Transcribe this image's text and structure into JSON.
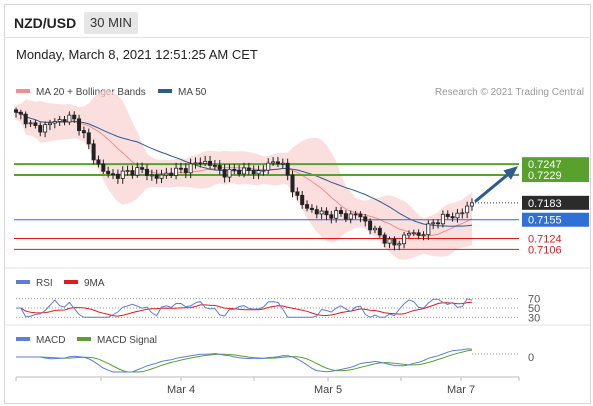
{
  "header": {
    "pair": "NZD/USD",
    "timeframe": "30 MIN",
    "datetime": "Monday, March 8, 2021 12:51:25 AM CET"
  },
  "legend": {
    "main": [
      {
        "name": "MA 20 + Bollinger Bands",
        "color": "#ef8f8f"
      },
      {
        "name": "MA 50",
        "color": "#2d5c8e"
      }
    ],
    "credit": "Research © 2021 Trading Central",
    "rsi": [
      {
        "name": "RSI",
        "color": "#5a7fd6"
      },
      {
        "name": "9MA",
        "color": "#e31a1c"
      }
    ],
    "macd": [
      {
        "name": "MACD",
        "color": "#5a7fd6"
      },
      {
        "name": "MACD Signal",
        "color": "#5aa02c"
      }
    ]
  },
  "chart_data": [
    {
      "type": "candlestick",
      "title": "NZD/USD 30 MIN",
      "x_ticks": [
        "Mar 4",
        "Mar 5",
        "Mar 7"
      ],
      "levels": [
        {
          "value": 0.7247,
          "label": "0.7247",
          "color": "#5aa02c",
          "kind": "resistance"
        },
        {
          "value": 0.7229,
          "label": "0.7229",
          "color": "#5aa02c",
          "kind": "resistance"
        },
        {
          "value": 0.7183,
          "label": "0.7183",
          "color": "#333333",
          "kind": "last-price"
        },
        {
          "value": 0.7155,
          "label": "0.7155",
          "color": "#2f6fd6",
          "kind": "pivot"
        },
        {
          "value": 0.7124,
          "label": "0.7124",
          "color": "#e31a1c",
          "kind": "support"
        },
        {
          "value": 0.7106,
          "label": "0.7106",
          "color": "#e31a1c",
          "kind": "support"
        }
      ],
      "close_path": [
        0.733,
        0.7325,
        0.731,
        0.7305,
        0.7312,
        0.7318,
        0.732,
        0.7325,
        0.7314,
        0.729,
        0.726,
        0.7238,
        0.723,
        0.7228,
        0.7232,
        0.7236,
        0.7238,
        0.7232,
        0.7224,
        0.7228,
        0.7234,
        0.7236,
        0.724,
        0.7246,
        0.7252,
        0.7248,
        0.724,
        0.7232,
        0.7234,
        0.7238,
        0.7236,
        0.7232,
        0.724,
        0.7248,
        0.7255,
        0.7232,
        0.72,
        0.718,
        0.7172,
        0.7168,
        0.7162,
        0.7165,
        0.7164,
        0.716,
        0.7165,
        0.7155,
        0.714,
        0.713,
        0.712,
        0.7112,
        0.7125,
        0.7135,
        0.7128,
        0.7138,
        0.715,
        0.7158,
        0.716,
        0.7163,
        0.717,
        0.7183
      ],
      "ylim": [
        0.7085,
        0.7345
      ],
      "target": 0.7247
    },
    {
      "type": "line",
      "title": "RSI",
      "y_ticks": [
        "70",
        "50",
        "30"
      ],
      "ylim": [
        20,
        80
      ]
    },
    {
      "type": "line",
      "title": "MACD",
      "y_ticks": [
        "0"
      ]
    }
  ]
}
